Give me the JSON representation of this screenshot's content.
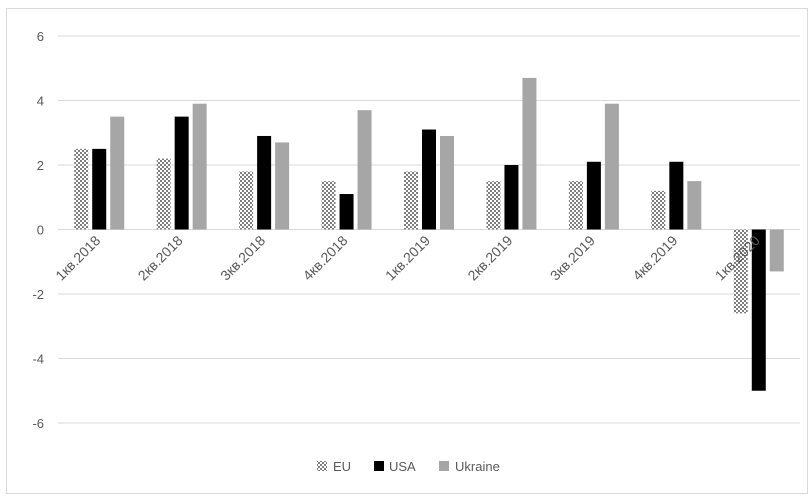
{
  "chart_data": {
    "type": "bar",
    "categories": [
      "1кв.2018",
      "2кв.2018",
      "3кв.2018",
      "4кв.2018",
      "1кв.2019",
      "2кв.2019",
      "3кв.2019",
      "4кв.2019",
      "1кв.2020"
    ],
    "series": [
      {
        "name": "EU",
        "values": [
          2.5,
          2.2,
          1.8,
          1.5,
          1.8,
          1.5,
          1.5,
          1.2,
          -2.6
        ],
        "color": "#b5b5b5",
        "pattern": "checker"
      },
      {
        "name": "USA",
        "values": [
          2.5,
          3.5,
          2.9,
          1.1,
          3.1,
          2.0,
          2.1,
          2.1,
          -5.0
        ],
        "color": "#000000"
      },
      {
        "name": "Ukraine",
        "values": [
          3.5,
          3.9,
          2.7,
          3.7,
          2.9,
          4.7,
          3.9,
          1.5,
          -1.3
        ],
        "color": "#a6a6a6"
      }
    ],
    "ylim": [
      -6,
      6
    ],
    "yticks": [
      -6,
      -4,
      -2,
      0,
      2,
      4,
      6
    ],
    "title": "",
    "xlabel": "",
    "ylabel": "",
    "grid": true,
    "legend": "bottom-center",
    "gridline_color": "#d9d9d9"
  }
}
